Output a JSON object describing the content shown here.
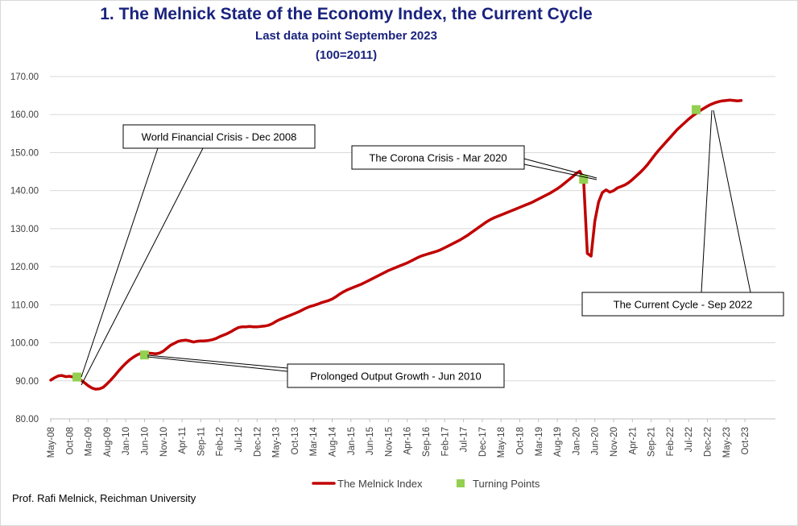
{
  "chart_data": {
    "type": "line",
    "title": "1.  The Melnick State of the Economy Index, the Current Cycle",
    "subtitle_lines": [
      "Last data point September 2023",
      "(100=2011)"
    ],
    "xlabel": "",
    "ylabel": "",
    "ylim": [
      80,
      170
    ],
    "yticks": [
      "80.00",
      "90.00",
      "100.00",
      "110.00",
      "120.00",
      "130.00",
      "140.00",
      "150.00",
      "160.00",
      "170.00"
    ],
    "x_tick_labels": [
      "May-08",
      "Oct-08",
      "Mar-09",
      "Aug-09",
      "Jan-10",
      "Jun-10",
      "Nov-10",
      "Apr-11",
      "Sep-11",
      "Feb-12",
      "Jul-12",
      "Dec-12",
      "May-13",
      "Oct-13",
      "Mar-14",
      "Aug-14",
      "Jan-15",
      "Jun-15",
      "Nov-15",
      "Apr-16",
      "Sep-16",
      "Feb-17",
      "Jul-17",
      "Dec-17",
      "May-18",
      "Oct-18",
      "Mar-19",
      "Aug-19",
      "Jan-20",
      "Jun-20",
      "Nov-20",
      "Apr-21",
      "Sep-21",
      "Feb-22",
      "Jul-22",
      "Dec-22",
      "May-23",
      "Oct-23"
    ],
    "grid": "horizontal",
    "legend_position": "bottom",
    "series": [
      {
        "name": "The Melnick Index",
        "color": "#c00000",
        "points": [
          [
            "2008-05",
            90.2
          ],
          [
            "2008-06",
            90.8
          ],
          [
            "2008-07",
            91.3
          ],
          [
            "2008-08",
            91.4
          ],
          [
            "2008-09",
            91.1
          ],
          [
            "2008-10",
            91.2
          ],
          [
            "2008-11",
            91.0
          ],
          [
            "2008-12",
            90.8
          ],
          [
            "2009-01",
            90.2
          ],
          [
            "2009-02",
            89.5
          ],
          [
            "2009-03",
            88.7
          ],
          [
            "2009-04",
            88.1
          ],
          [
            "2009-05",
            87.8
          ],
          [
            "2009-06",
            87.9
          ],
          [
            "2009-07",
            88.3
          ],
          [
            "2009-08",
            89.2
          ],
          [
            "2009-09",
            90.2
          ],
          [
            "2009-10",
            91.3
          ],
          [
            "2009-11",
            92.5
          ],
          [
            "2009-12",
            93.6
          ],
          [
            "2010-01",
            94.6
          ],
          [
            "2010-02",
            95.5
          ],
          [
            "2010-03",
            96.2
          ],
          [
            "2010-04",
            96.8
          ],
          [
            "2010-05",
            97.2
          ],
          [
            "2010-06",
            97.3
          ],
          [
            "2010-07",
            97.3
          ],
          [
            "2010-08",
            97.2
          ],
          [
            "2010-09",
            97.1
          ],
          [
            "2010-10",
            97.3
          ],
          [
            "2010-11",
            97.8
          ],
          [
            "2010-12",
            98.6
          ],
          [
            "2011-01",
            99.4
          ],
          [
            "2011-02",
            99.9
          ],
          [
            "2011-03",
            100.4
          ],
          [
            "2011-04",
            100.6
          ],
          [
            "2011-05",
            100.7
          ],
          [
            "2011-06",
            100.5
          ],
          [
            "2011-07",
            100.2
          ],
          [
            "2011-08",
            100.4
          ],
          [
            "2011-09",
            100.5
          ],
          [
            "2011-10",
            100.5
          ],
          [
            "2011-11",
            100.6
          ],
          [
            "2011-12",
            100.8
          ],
          [
            "2012-01",
            101.1
          ],
          [
            "2012-02",
            101.6
          ],
          [
            "2012-03",
            102.0
          ],
          [
            "2012-04",
            102.4
          ],
          [
            "2012-05",
            102.9
          ],
          [
            "2012-06",
            103.5
          ],
          [
            "2012-07",
            104.0
          ],
          [
            "2012-08",
            104.2
          ],
          [
            "2012-09",
            104.2
          ],
          [
            "2012-10",
            104.3
          ],
          [
            "2012-11",
            104.2
          ],
          [
            "2012-12",
            104.2
          ],
          [
            "2013-01",
            104.3
          ],
          [
            "2013-02",
            104.4
          ],
          [
            "2013-03",
            104.6
          ],
          [
            "2013-04",
            105.0
          ],
          [
            "2013-05",
            105.6
          ],
          [
            "2013-06",
            106.1
          ],
          [
            "2013-07",
            106.5
          ],
          [
            "2013-08",
            106.9
          ],
          [
            "2013-09",
            107.3
          ],
          [
            "2013-10",
            107.7
          ],
          [
            "2013-11",
            108.1
          ],
          [
            "2013-12",
            108.6
          ],
          [
            "2014-01",
            109.1
          ],
          [
            "2014-02",
            109.5
          ],
          [
            "2014-03",
            109.8
          ],
          [
            "2014-04",
            110.1
          ],
          [
            "2014-05",
            110.5
          ],
          [
            "2014-06",
            110.8
          ],
          [
            "2014-07",
            111.1
          ],
          [
            "2014-08",
            111.5
          ],
          [
            "2014-09",
            112.1
          ],
          [
            "2014-10",
            112.8
          ],
          [
            "2014-11",
            113.4
          ],
          [
            "2014-12",
            113.9
          ],
          [
            "2015-01",
            114.3
          ],
          [
            "2015-02",
            114.7
          ],
          [
            "2015-03",
            115.1
          ],
          [
            "2015-04",
            115.5
          ],
          [
            "2015-05",
            116.0
          ],
          [
            "2015-06",
            116.5
          ],
          [
            "2015-07",
            117.0
          ],
          [
            "2015-08",
            117.5
          ],
          [
            "2015-09",
            118.0
          ],
          [
            "2015-10",
            118.5
          ],
          [
            "2015-11",
            119.0
          ],
          [
            "2015-12",
            119.4
          ],
          [
            "2016-01",
            119.8
          ],
          [
            "2016-02",
            120.2
          ],
          [
            "2016-03",
            120.6
          ],
          [
            "2016-04",
            121.0
          ],
          [
            "2016-05",
            121.5
          ],
          [
            "2016-06",
            122.0
          ],
          [
            "2016-07",
            122.5
          ],
          [
            "2016-08",
            122.9
          ],
          [
            "2016-09",
            123.2
          ],
          [
            "2016-10",
            123.5
          ],
          [
            "2016-11",
            123.8
          ],
          [
            "2016-12",
            124.1
          ],
          [
            "2017-01",
            124.5
          ],
          [
            "2017-02",
            125.0
          ],
          [
            "2017-03",
            125.5
          ],
          [
            "2017-04",
            126.0
          ],
          [
            "2017-05",
            126.5
          ],
          [
            "2017-06",
            127.0
          ],
          [
            "2017-07",
            127.6
          ],
          [
            "2017-08",
            128.2
          ],
          [
            "2017-09",
            128.9
          ],
          [
            "2017-10",
            129.6
          ],
          [
            "2017-11",
            130.3
          ],
          [
            "2017-12",
            131.0
          ],
          [
            "2018-01",
            131.7
          ],
          [
            "2018-02",
            132.3
          ],
          [
            "2018-03",
            132.8
          ],
          [
            "2018-04",
            133.2
          ],
          [
            "2018-05",
            133.6
          ],
          [
            "2018-06",
            134.0
          ],
          [
            "2018-07",
            134.4
          ],
          [
            "2018-08",
            134.8
          ],
          [
            "2018-09",
            135.2
          ],
          [
            "2018-10",
            135.6
          ],
          [
            "2018-11",
            136.0
          ],
          [
            "2018-12",
            136.4
          ],
          [
            "2019-01",
            136.8
          ],
          [
            "2019-02",
            137.3
          ],
          [
            "2019-03",
            137.8
          ],
          [
            "2019-04",
            138.3
          ],
          [
            "2019-05",
            138.8
          ],
          [
            "2019-06",
            139.3
          ],
          [
            "2019-07",
            139.9
          ],
          [
            "2019-08",
            140.5
          ],
          [
            "2019-09",
            141.2
          ],
          [
            "2019-10",
            142.0
          ],
          [
            "2019-11",
            142.8
          ],
          [
            "2019-12",
            143.6
          ],
          [
            "2020-01",
            144.5
          ],
          [
            "2020-02",
            145.1
          ],
          [
            "2020-03",
            143.0
          ],
          [
            "2020-04",
            123.5
          ],
          [
            "2020-05",
            122.8
          ],
          [
            "2020-06",
            132.0
          ],
          [
            "2020-07",
            137.0
          ],
          [
            "2020-08",
            139.5
          ],
          [
            "2020-09",
            140.2
          ],
          [
            "2020-10",
            139.6
          ],
          [
            "2020-11",
            140.0
          ],
          [
            "2020-12",
            140.7
          ],
          [
            "2021-01",
            141.1
          ],
          [
            "2021-02",
            141.5
          ],
          [
            "2021-03",
            142.1
          ],
          [
            "2021-04",
            142.9
          ],
          [
            "2021-05",
            143.8
          ],
          [
            "2021-06",
            144.7
          ],
          [
            "2021-07",
            145.7
          ],
          [
            "2021-08",
            146.8
          ],
          [
            "2021-09",
            148.1
          ],
          [
            "2021-10",
            149.4
          ],
          [
            "2021-11",
            150.6
          ],
          [
            "2021-12",
            151.7
          ],
          [
            "2022-01",
            152.8
          ],
          [
            "2022-02",
            153.9
          ],
          [
            "2022-03",
            155.0
          ],
          [
            "2022-04",
            156.1
          ],
          [
            "2022-05",
            157.0
          ],
          [
            "2022-06",
            157.9
          ],
          [
            "2022-07",
            158.8
          ],
          [
            "2022-08",
            159.6
          ],
          [
            "2022-09",
            160.3
          ],
          [
            "2022-10",
            161.0
          ],
          [
            "2022-11",
            161.6
          ],
          [
            "2022-12",
            162.2
          ],
          [
            "2023-01",
            162.7
          ],
          [
            "2023-02",
            163.1
          ],
          [
            "2023-03",
            163.4
          ],
          [
            "2023-04",
            163.6
          ],
          [
            "2023-05",
            163.7
          ],
          [
            "2023-06",
            163.8
          ],
          [
            "2023-07",
            163.7
          ],
          [
            "2023-08",
            163.6
          ],
          [
            "2023-09",
            163.7
          ]
        ]
      },
      {
        "name": "Turning Points",
        "color": "#92d050",
        "marker": "square",
        "points": [
          [
            "2008-12",
            91.0
          ],
          [
            "2010-06",
            96.8
          ],
          [
            "2020-03",
            143.0
          ],
          [
            "2022-09",
            161.3
          ]
        ]
      }
    ],
    "annotations": [
      {
        "text": "World Financial Crisis - Dec 2008",
        "target": [
          "2008-12",
          91.0
        ],
        "placement": "upper-left"
      },
      {
        "text": "Prolonged Output Growth - Jun 2010",
        "target": [
          "2010-06",
          96.8
        ],
        "placement": "lower-middle"
      },
      {
        "text": "The Corona Crisis - Mar 2020",
        "target": [
          "2020-03",
          143.0
        ],
        "placement": "upper-middle"
      },
      {
        "text": "The Current Cycle - Sep 2022",
        "target": [
          "2022-09",
          161.3
        ],
        "placement": "lower-right"
      }
    ]
  },
  "footer": {
    "credit": "Prof. Rafi Melnick, Reichman University"
  }
}
